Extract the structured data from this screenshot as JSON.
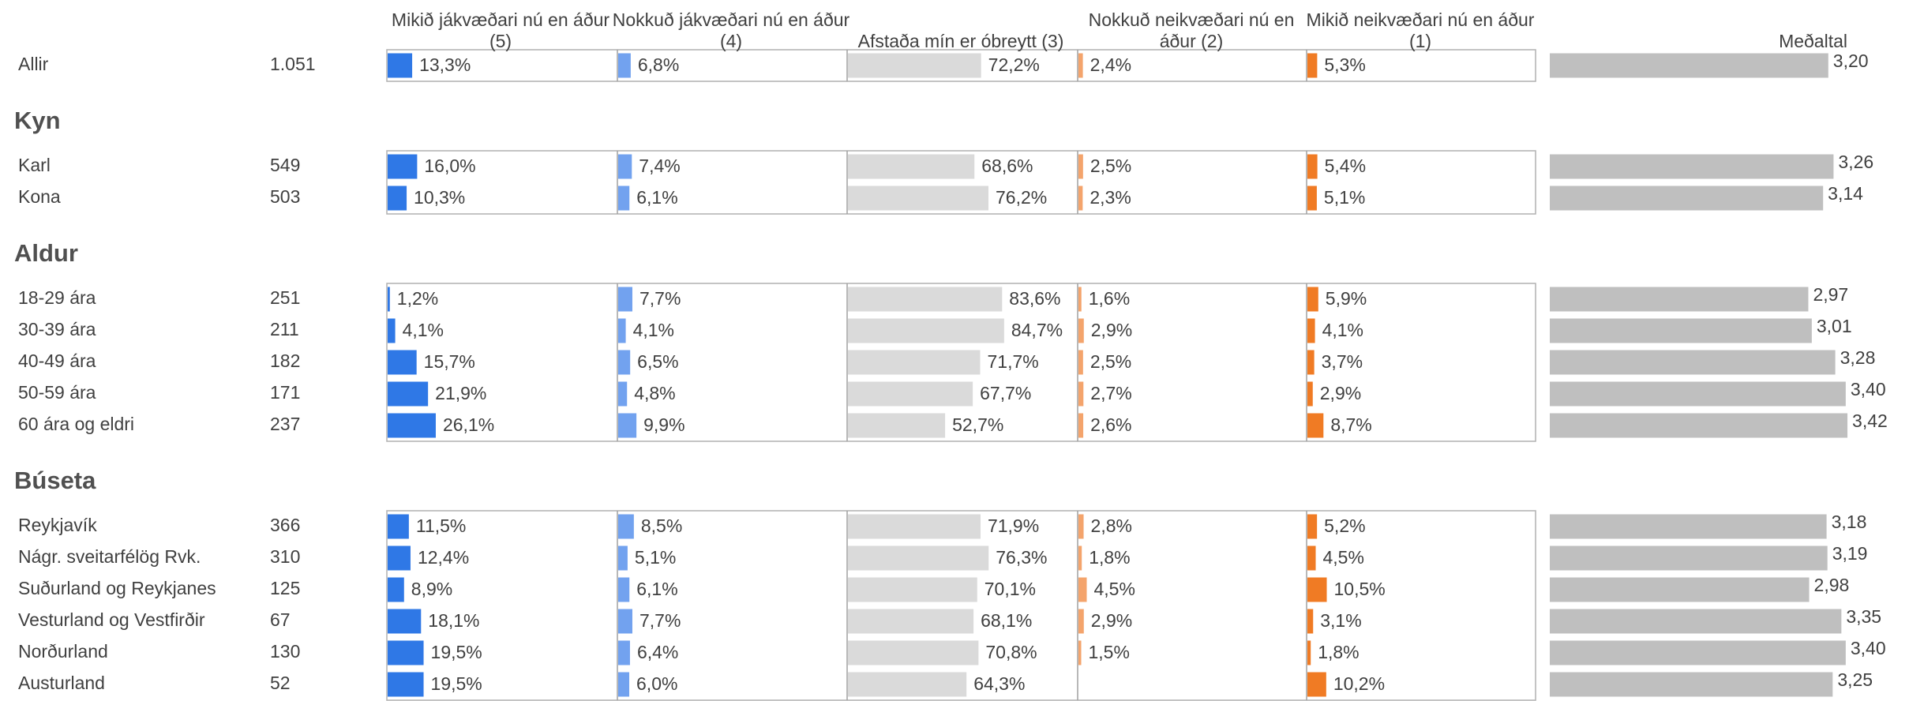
{
  "chart_data": {
    "type": "table-bars",
    "columns": [
      {
        "name": "Mikið jákvæðari nú en áður (5)",
        "color": "#2f78e6"
      },
      {
        "name": "Nokkuð jákvæðari nú en áður (4)",
        "color": "#72a2ef"
      },
      {
        "name": "Afstaða mín er óbreytt (3)",
        "color": "#dadada"
      },
      {
        "name": "Nokkuð neikvæðari nú en áður (2)",
        "color": "#f4a46c"
      },
      {
        "name": "Mikið neikvæðari nú en áður (1)",
        "color": "#f07b24"
      }
    ],
    "xlim": [
      0,
      125
    ],
    "mean_title": "Meðaltal",
    "mean_color": "#bfbfbf",
    "mean_xlim": [
      0,
      4
    ],
    "groups": [
      {
        "rows": [
          {
            "label": "Allir",
            "n": "1.051",
            "values": [
              13.3,
              6.8,
              72.2,
              2.4,
              5.3
            ],
            "value_labels": [
              "13,3%",
              "6,8%",
              "72,2%",
              "2,4%",
              "5,3%"
            ],
            "mean": 3.2,
            "mean_label": "3,20"
          }
        ]
      },
      {
        "title": "Kyn",
        "rows": [
          {
            "label": "Karl",
            "n": "549",
            "values": [
              16.0,
              7.4,
              68.6,
              2.5,
              5.4
            ],
            "value_labels": [
              "16,0%",
              "7,4%",
              "68,6%",
              "2,5%",
              "5,4%"
            ],
            "mean": 3.26,
            "mean_label": "3,26"
          },
          {
            "label": "Kona",
            "n": "503",
            "values": [
              10.3,
              6.1,
              76.2,
              2.3,
              5.1
            ],
            "value_labels": [
              "10,3%",
              "6,1%",
              "76,2%",
              "2,3%",
              "5,1%"
            ],
            "mean": 3.14,
            "mean_label": "3,14"
          }
        ]
      },
      {
        "title": "Aldur",
        "rows": [
          {
            "label": "18-29 ára",
            "n": "251",
            "values": [
              1.2,
              7.7,
              83.6,
              1.6,
              5.9
            ],
            "value_labels": [
              "1,2%",
              "7,7%",
              "83,6%",
              "1,6%",
              "5,9%"
            ],
            "mean": 2.97,
            "mean_label": "2,97"
          },
          {
            "label": "30-39 ára",
            "n": "211",
            "values": [
              4.1,
              4.1,
              84.7,
              2.9,
              4.1
            ],
            "value_labels": [
              "4,1%",
              "4,1%",
              "84,7%",
              "2,9%",
              "4,1%"
            ],
            "mean": 3.01,
            "mean_label": "3,01"
          },
          {
            "label": "40-49 ára",
            "n": "182",
            "values": [
              15.7,
              6.5,
              71.7,
              2.5,
              3.7
            ],
            "value_labels": [
              "15,7%",
              "6,5%",
              "71,7%",
              "2,5%",
              "3,7%"
            ],
            "mean": 3.28,
            "mean_label": "3,28"
          },
          {
            "label": "50-59 ára",
            "n": "171",
            "values": [
              21.9,
              4.8,
              67.7,
              2.7,
              2.9
            ],
            "value_labels": [
              "21,9%",
              "4,8%",
              "67,7%",
              "2,7%",
              "2,9%"
            ],
            "mean": 3.4,
            "mean_label": "3,40"
          },
          {
            "label": "60 ára og eldri",
            "n": "237",
            "values": [
              26.1,
              9.9,
              52.7,
              2.6,
              8.7
            ],
            "value_labels": [
              "26,1%",
              "9,9%",
              "52,7%",
              "2,6%",
              "8,7%"
            ],
            "mean": 3.42,
            "mean_label": "3,42"
          }
        ]
      },
      {
        "title": "Búseta",
        "rows": [
          {
            "label": "Reykjavík",
            "n": "366",
            "values": [
              11.5,
              8.5,
              71.9,
              2.8,
              5.2
            ],
            "value_labels": [
              "11,5%",
              "8,5%",
              "71,9%",
              "2,8%",
              "5,2%"
            ],
            "mean": 3.18,
            "mean_label": "3,18"
          },
          {
            "label": "Nágr. sveitarfélög Rvk.",
            "n": "310",
            "values": [
              12.4,
              5.1,
              76.3,
              1.8,
              4.5
            ],
            "value_labels": [
              "12,4%",
              "5,1%",
              "76,3%",
              "1,8%",
              "4,5%"
            ],
            "mean": 3.19,
            "mean_label": "3,19"
          },
          {
            "label": "Suðurland og Reykjanes",
            "n": "125",
            "values": [
              8.9,
              6.1,
              70.1,
              4.5,
              10.5
            ],
            "value_labels": [
              "8,9%",
              "6,1%",
              "70,1%",
              "4,5%",
              "10,5%"
            ],
            "mean": 2.98,
            "mean_label": "2,98"
          },
          {
            "label": "Vesturland og Vestfirðir",
            "n": "67",
            "values": [
              18.1,
              7.7,
              68.1,
              2.9,
              3.1
            ],
            "value_labels": [
              "18,1%",
              "7,7%",
              "68,1%",
              "2,9%",
              "3,1%"
            ],
            "mean": 3.35,
            "mean_label": "3,35"
          },
          {
            "label": "Norðurland",
            "n": "130",
            "values": [
              19.5,
              6.4,
              70.8,
              1.5,
              1.8
            ],
            "value_labels": [
              "19,5%",
              "6,4%",
              "70,8%",
              "1,5%",
              "1,8%"
            ],
            "mean": 3.4,
            "mean_label": "3,40"
          },
          {
            "label": "Austurland",
            "n": "52",
            "values": [
              19.5,
              6.0,
              64.3,
              null,
              10.2
            ],
            "value_labels": [
              "19,5%",
              "6,0%",
              "64,3%",
              null,
              "10,2%"
            ],
            "mean": 3.25,
            "mean_label": "3,25"
          }
        ]
      }
    ]
  }
}
